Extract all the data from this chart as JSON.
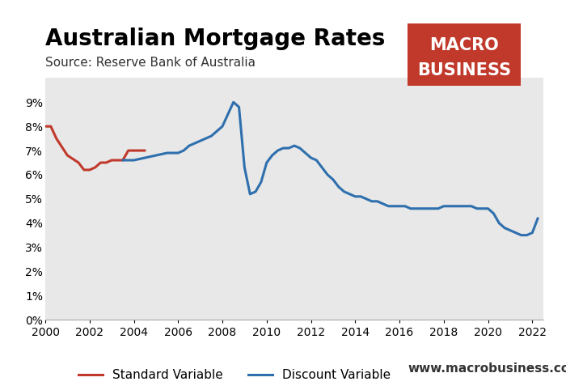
{
  "title": "Australian Mortgage Rates",
  "subtitle": "Source: Reserve Bank of Australia",
  "title_fontsize": 20,
  "subtitle_fontsize": 11,
  "background_color": "#e8e8e8",
  "fig_background": "#ffffff",
  "standard_variable_color": "#c0392b",
  "discount_variable_color": "#2e6fad",
  "line_width": 2.2,
  "ylim": [
    0,
    0.1
  ],
  "yticks": [
    0,
    0.01,
    0.02,
    0.03,
    0.04,
    0.05,
    0.06,
    0.07,
    0.08,
    0.09
  ],
  "ytick_labels": [
    "0%",
    "1%",
    "2%",
    "3%",
    "4%",
    "5%",
    "6%",
    "7%",
    "8%",
    "9%"
  ],
  "xlim": [
    2000,
    2022.5
  ],
  "xticks": [
    2000,
    2002,
    2004,
    2006,
    2008,
    2010,
    2012,
    2014,
    2016,
    2018,
    2020,
    2022
  ],
  "legend_labels": [
    "Standard Variable",
    "Discount Variable"
  ],
  "logo_text_line1": "MACRO",
  "logo_text_line2": "BUSINESS",
  "logo_bg_color": "#c0392b",
  "logo_text_color": "#ffffff",
  "website_text": "www.macrobusiness.com.au",
  "standard_variable_x": [
    2000.0,
    2000.25,
    2000.5,
    2001.0,
    2001.5,
    2001.75,
    2002.0,
    2002.25,
    2002.5,
    2002.75,
    2003.0,
    2003.25,
    2003.5,
    2003.75,
    2004.0,
    2004.25,
    2004.5
  ],
  "standard_variable_y": [
    0.08,
    0.08,
    0.075,
    0.068,
    0.065,
    0.062,
    0.062,
    0.063,
    0.065,
    0.065,
    0.066,
    0.066,
    0.066,
    0.07,
    0.07,
    0.07,
    0.07
  ],
  "discount_variable_x": [
    2003.5,
    2003.75,
    2004.0,
    2004.5,
    2005.0,
    2005.5,
    2006.0,
    2006.25,
    2006.5,
    2006.75,
    2007.0,
    2007.25,
    2007.5,
    2007.75,
    2008.0,
    2008.25,
    2008.5,
    2008.75,
    2009.0,
    2009.25,
    2009.5,
    2009.75,
    2010.0,
    2010.25,
    2010.5,
    2010.75,
    2011.0,
    2011.25,
    2011.5,
    2011.75,
    2012.0,
    2012.25,
    2012.5,
    2012.75,
    2013.0,
    2013.25,
    2013.5,
    2013.75,
    2014.0,
    2014.25,
    2014.5,
    2014.75,
    2015.0,
    2015.25,
    2015.5,
    2015.75,
    2016.0,
    2016.25,
    2016.5,
    2016.75,
    2017.0,
    2017.25,
    2017.5,
    2017.75,
    2018.0,
    2018.25,
    2018.5,
    2018.75,
    2019.0,
    2019.25,
    2019.5,
    2019.75,
    2020.0,
    2020.25,
    2020.5,
    2020.75,
    2021.0,
    2021.25,
    2021.5,
    2021.75,
    2022.0,
    2022.25
  ],
  "discount_variable_y": [
    0.066,
    0.066,
    0.066,
    0.067,
    0.068,
    0.069,
    0.069,
    0.07,
    0.072,
    0.073,
    0.074,
    0.075,
    0.076,
    0.078,
    0.08,
    0.085,
    0.09,
    0.088,
    0.063,
    0.052,
    0.053,
    0.057,
    0.065,
    0.068,
    0.07,
    0.071,
    0.071,
    0.072,
    0.071,
    0.069,
    0.067,
    0.066,
    0.063,
    0.06,
    0.058,
    0.055,
    0.053,
    0.052,
    0.051,
    0.051,
    0.05,
    0.049,
    0.049,
    0.048,
    0.047,
    0.047,
    0.047,
    0.047,
    0.046,
    0.046,
    0.046,
    0.046,
    0.046,
    0.046,
    0.047,
    0.047,
    0.047,
    0.047,
    0.047,
    0.047,
    0.046,
    0.046,
    0.046,
    0.044,
    0.04,
    0.038,
    0.037,
    0.036,
    0.035,
    0.035,
    0.036,
    0.042
  ]
}
